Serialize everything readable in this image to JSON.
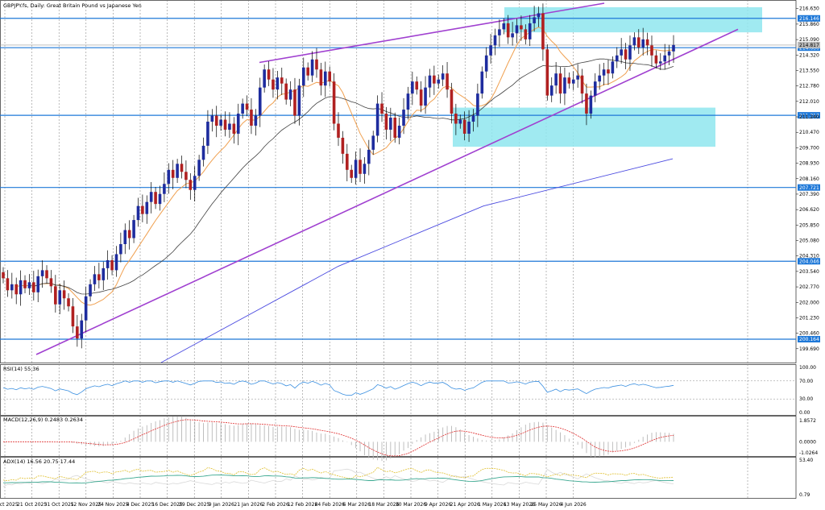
{
  "chart_data": [
    {
      "type": "candlestick",
      "title": "GBPJPY.fs, Daily:  Great Britain Pound vs Japanese Yen",
      "y_ticks": [
        "216.630",
        "215.860",
        "215.090",
        "214.320",
        "213.550",
        "212.780",
        "212.010",
        "211.240",
        "210.470",
        "209.700",
        "208.930",
        "208.160",
        "207.390",
        "206.620",
        "205.850",
        "205.080",
        "204.310",
        "203.540",
        "202.770",
        "202.000",
        "201.230",
        "200.460",
        "199.690"
      ],
      "ylim": [
        199.0,
        216.9
      ],
      "x_ticks": [
        "9 Oct 2025",
        "21 Oct 2025",
        "31 Oct 2025",
        "12 Nov 2025",
        "24 Nov 2025",
        "4 Dec 2025",
        "16 Dec 2025",
        "29 Dec 2025",
        "9 Jan 2026",
        "21 Jan 2026",
        "2 Feb 2026",
        "12 Feb 2026",
        "24 Feb 2026",
        "6 Mar 2026",
        "18 Mar 2026",
        "30 Mar 2026",
        "9 Apr 2026",
        "21 Apr 2026",
        "1 May 2026",
        "13 May 2026",
        "25 May 2026",
        "4 Jun 2026"
      ],
      "horizontal_levels": [
        {
          "value": 216.146,
          "label": "216.146"
        },
        {
          "value": 214.686,
          "label": "214.686"
        },
        {
          "value": 211.317,
          "label": "211.317"
        },
        {
          "value": 207.721,
          "label": "207.721"
        },
        {
          "value": 204.046,
          "label": "204.046"
        },
        {
          "value": 200.164,
          "label": "200.164"
        }
      ],
      "current_price": {
        "value": 214.817,
        "label": "214.817"
      },
      "zones": [
        {
          "from": 215.45,
          "to": 216.7
        },
        {
          "from": 209.75,
          "to": 211.7
        }
      ],
      "trendlines": [
        "rising channel upper line",
        "rising support line"
      ],
      "moving_averages": [
        "orange 20-period",
        "black 50-period",
        "blue 200-period"
      ],
      "closes": [
        203.2,
        202.6,
        202.9,
        202.4,
        203.1,
        202.7,
        203.0,
        202.5,
        203.3,
        203.6,
        203.2,
        202.8,
        201.9,
        202.6,
        202.2,
        201.8,
        200.8,
        200.2,
        201.1,
        202.3,
        202.9,
        203.4,
        203.1,
        203.7,
        204.1,
        203.6,
        204.4,
        204.9,
        205.6,
        205.2,
        206.1,
        206.8,
        206.4,
        207.0,
        207.5,
        206.9,
        207.4,
        207.9,
        208.6,
        208.2,
        208.9,
        208.5,
        208.1,
        207.6,
        208.3,
        209.1,
        209.8,
        211.0,
        211.3,
        210.8,
        211.1,
        210.6,
        210.9,
        210.4,
        211.4,
        211.9,
        211.6,
        210.8,
        211.3,
        212.7,
        213.6,
        213.1,
        212.6,
        213.2,
        212.9,
        212.1,
        212.6,
        211.3,
        212.8,
        213.7,
        213.3,
        214.1,
        213.6,
        212.8,
        213.5,
        213.0,
        210.9,
        210.2,
        209.4,
        208.6,
        208.2,
        209.1,
        208.4,
        208.9,
        209.6,
        210.3,
        211.9,
        211.4,
        210.6,
        211.2,
        210.2,
        210.8,
        211.6,
        212.4,
        213.0,
        212.6,
        211.8,
        212.7,
        213.3,
        212.9,
        213.1,
        213.4,
        212.6,
        211.4,
        210.9,
        211.1,
        210.4,
        211.0,
        211.3,
        212.4,
        213.5,
        214.3,
        214.8,
        215.3,
        215.6,
        215.9,
        215.2,
        215.4,
        215.8,
        215.6,
        215.1,
        215.9,
        216.2,
        216.4,
        214.6,
        212.3,
        212.8,
        213.4,
        212.4,
        213.2,
        212.9,
        213.1,
        213.3,
        212.4,
        211.4,
        212.3,
        213.0,
        213.3,
        213.6,
        213.4,
        214.0,
        214.3,
        214.6,
        214.1,
        214.8,
        215.2,
        214.7,
        215.1,
        214.8,
        214.3,
        213.9,
        214.0,
        214.3,
        214.5,
        214.82
      ],
      "panels": [
        {
          "name": "RSI(14) 55.36",
          "y_ticks": [
            "100.00",
            "70.00",
            "30.00",
            "0.00"
          ],
          "levels": [
            70,
            30
          ],
          "ylim": [
            0,
            100
          ]
        },
        {
          "name": "MACD(12,26,9) 0.2483 0.2634",
          "y_ticks": [
            "1.8572",
            "0.0000",
            "-1.0264"
          ],
          "ylim": [
            -1.0264,
            1.8572
          ]
        },
        {
          "name": "ADX(14) 16.56 20.75 17.44",
          "y_ticks": [
            "53.40",
            "0.79"
          ],
          "ylim": [
            0.79,
            53.4
          ]
        }
      ]
    }
  ],
  "colors": {
    "bull": "#1e2c9e",
    "bear": "#b02020",
    "level": "#1e78d8",
    "zone": "#8fe6ee",
    "channel": "#a040d0",
    "ma_fast": "#f0a050",
    "ma_mid": "#404040",
    "ma_slow": "#4a4ae0",
    "rsi": "#3a8fe0",
    "macd_signal": "#e03030",
    "macd_hist": "#b8b8b8",
    "adx": "#3aa890",
    "adx_plus": "#e0c030",
    "adx_minus": "#d8d8d8"
  }
}
